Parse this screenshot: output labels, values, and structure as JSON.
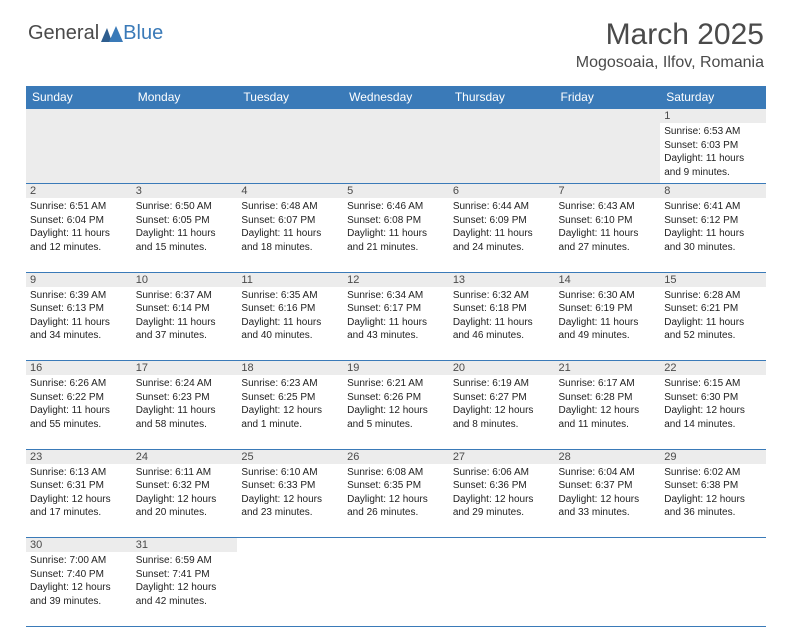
{
  "logo": {
    "general": "General",
    "blue": "Blue"
  },
  "title": "March 2025",
  "location": "Mogosoaia, Ilfov, Romania",
  "columns": [
    "Sunday",
    "Monday",
    "Tuesday",
    "Wednesday",
    "Thursday",
    "Friday",
    "Saturday"
  ],
  "colors": {
    "header_bg": "#3a7ab8",
    "header_fg": "#ffffff",
    "numrow_bg": "#ececec",
    "text": "#4a4a4a",
    "border": "#3a7ab8"
  },
  "first_row_fill": 6,
  "days": [
    {
      "n": "1",
      "sr": "Sunrise: 6:53 AM",
      "ss": "Sunset: 6:03 PM",
      "dl": "Daylight: 11 hours and 9 minutes."
    },
    {
      "n": "2",
      "sr": "Sunrise: 6:51 AM",
      "ss": "Sunset: 6:04 PM",
      "dl": "Daylight: 11 hours and 12 minutes."
    },
    {
      "n": "3",
      "sr": "Sunrise: 6:50 AM",
      "ss": "Sunset: 6:05 PM",
      "dl": "Daylight: 11 hours and 15 minutes."
    },
    {
      "n": "4",
      "sr": "Sunrise: 6:48 AM",
      "ss": "Sunset: 6:07 PM",
      "dl": "Daylight: 11 hours and 18 minutes."
    },
    {
      "n": "5",
      "sr": "Sunrise: 6:46 AM",
      "ss": "Sunset: 6:08 PM",
      "dl": "Daylight: 11 hours and 21 minutes."
    },
    {
      "n": "6",
      "sr": "Sunrise: 6:44 AM",
      "ss": "Sunset: 6:09 PM",
      "dl": "Daylight: 11 hours and 24 minutes."
    },
    {
      "n": "7",
      "sr": "Sunrise: 6:43 AM",
      "ss": "Sunset: 6:10 PM",
      "dl": "Daylight: 11 hours and 27 minutes."
    },
    {
      "n": "8",
      "sr": "Sunrise: 6:41 AM",
      "ss": "Sunset: 6:12 PM",
      "dl": "Daylight: 11 hours and 30 minutes."
    },
    {
      "n": "9",
      "sr": "Sunrise: 6:39 AM",
      "ss": "Sunset: 6:13 PM",
      "dl": "Daylight: 11 hours and 34 minutes."
    },
    {
      "n": "10",
      "sr": "Sunrise: 6:37 AM",
      "ss": "Sunset: 6:14 PM",
      "dl": "Daylight: 11 hours and 37 minutes."
    },
    {
      "n": "11",
      "sr": "Sunrise: 6:35 AM",
      "ss": "Sunset: 6:16 PM",
      "dl": "Daylight: 11 hours and 40 minutes."
    },
    {
      "n": "12",
      "sr": "Sunrise: 6:34 AM",
      "ss": "Sunset: 6:17 PM",
      "dl": "Daylight: 11 hours and 43 minutes."
    },
    {
      "n": "13",
      "sr": "Sunrise: 6:32 AM",
      "ss": "Sunset: 6:18 PM",
      "dl": "Daylight: 11 hours and 46 minutes."
    },
    {
      "n": "14",
      "sr": "Sunrise: 6:30 AM",
      "ss": "Sunset: 6:19 PM",
      "dl": "Daylight: 11 hours and 49 minutes."
    },
    {
      "n": "15",
      "sr": "Sunrise: 6:28 AM",
      "ss": "Sunset: 6:21 PM",
      "dl": "Daylight: 11 hours and 52 minutes."
    },
    {
      "n": "16",
      "sr": "Sunrise: 6:26 AM",
      "ss": "Sunset: 6:22 PM",
      "dl": "Daylight: 11 hours and 55 minutes."
    },
    {
      "n": "17",
      "sr": "Sunrise: 6:24 AM",
      "ss": "Sunset: 6:23 PM",
      "dl": "Daylight: 11 hours and 58 minutes."
    },
    {
      "n": "18",
      "sr": "Sunrise: 6:23 AM",
      "ss": "Sunset: 6:25 PM",
      "dl": "Daylight: 12 hours and 1 minute."
    },
    {
      "n": "19",
      "sr": "Sunrise: 6:21 AM",
      "ss": "Sunset: 6:26 PM",
      "dl": "Daylight: 12 hours and 5 minutes."
    },
    {
      "n": "20",
      "sr": "Sunrise: 6:19 AM",
      "ss": "Sunset: 6:27 PM",
      "dl": "Daylight: 12 hours and 8 minutes."
    },
    {
      "n": "21",
      "sr": "Sunrise: 6:17 AM",
      "ss": "Sunset: 6:28 PM",
      "dl": "Daylight: 12 hours and 11 minutes."
    },
    {
      "n": "22",
      "sr": "Sunrise: 6:15 AM",
      "ss": "Sunset: 6:30 PM",
      "dl": "Daylight: 12 hours and 14 minutes."
    },
    {
      "n": "23",
      "sr": "Sunrise: 6:13 AM",
      "ss": "Sunset: 6:31 PM",
      "dl": "Daylight: 12 hours and 17 minutes."
    },
    {
      "n": "24",
      "sr": "Sunrise: 6:11 AM",
      "ss": "Sunset: 6:32 PM",
      "dl": "Daylight: 12 hours and 20 minutes."
    },
    {
      "n": "25",
      "sr": "Sunrise: 6:10 AM",
      "ss": "Sunset: 6:33 PM",
      "dl": "Daylight: 12 hours and 23 minutes."
    },
    {
      "n": "26",
      "sr": "Sunrise: 6:08 AM",
      "ss": "Sunset: 6:35 PM",
      "dl": "Daylight: 12 hours and 26 minutes."
    },
    {
      "n": "27",
      "sr": "Sunrise: 6:06 AM",
      "ss": "Sunset: 6:36 PM",
      "dl": "Daylight: 12 hours and 29 minutes."
    },
    {
      "n": "28",
      "sr": "Sunrise: 6:04 AM",
      "ss": "Sunset: 6:37 PM",
      "dl": "Daylight: 12 hours and 33 minutes."
    },
    {
      "n": "29",
      "sr": "Sunrise: 6:02 AM",
      "ss": "Sunset: 6:38 PM",
      "dl": "Daylight: 12 hours and 36 minutes."
    },
    {
      "n": "30",
      "sr": "Sunrise: 7:00 AM",
      "ss": "Sunset: 7:40 PM",
      "dl": "Daylight: 12 hours and 39 minutes."
    },
    {
      "n": "31",
      "sr": "Sunrise: 6:59 AM",
      "ss": "Sunset: 7:41 PM",
      "dl": "Daylight: 12 hours and 42 minutes."
    }
  ]
}
